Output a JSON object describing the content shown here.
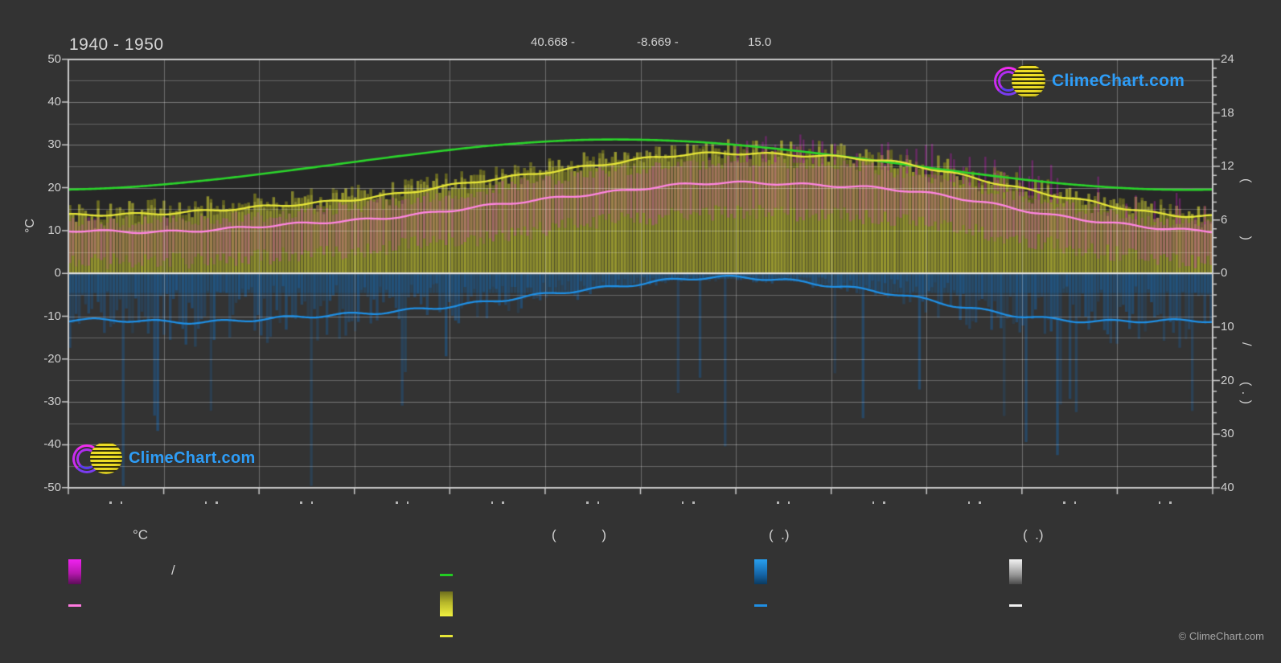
{
  "header": {
    "title": "1940 - 1950",
    "coordinates": [
      "40.668 -",
      "-8.669 -",
      "15.0"
    ]
  },
  "branding": {
    "logo_text": "ClimeChart.com",
    "copyright": "© ClimeChart.com"
  },
  "axes": {
    "left": {
      "label": "°C",
      "ticks": [
        50,
        40,
        30,
        20,
        10,
        0,
        -10,
        -20,
        -30,
        -40,
        -50
      ],
      "range": [
        -50,
        50
      ]
    },
    "right_upper": {
      "ticks": [
        24,
        18,
        12,
        6,
        0
      ],
      "range": [
        0,
        24
      ],
      "rotated_label": "(            )"
    },
    "right_lower": {
      "ticks": [
        10,
        20,
        30,
        40
      ],
      "range": [
        0,
        40
      ],
      "rotated_label": "/        ( . )"
    },
    "bottom": {
      "months": 12,
      "month_label_glyphs": ". ."
    }
  },
  "chart_data": {
    "type": "area",
    "subtype": "climate-composite",
    "title": "1940 - 1950",
    "x_months_count": 12,
    "x_labels_visible": [
      ". .",
      ". .",
      ". .",
      ". .",
      ". .",
      ". .",
      ". .",
      ". .",
      ". .",
      ". .",
      ". .",
      ". ."
    ],
    "ylim_left_celsius": [
      -50,
      50
    ],
    "ylim_right_sun_hours": [
      0,
      24
    ],
    "ylim_right_precip_mm": [
      0,
      40
    ],
    "grid": true,
    "series": [
      {
        "name": "day-length-hours",
        "style": "line",
        "axis": "right_upper",
        "monthly": [
          9.6,
          10.5,
          11.8,
          13.2,
          14.4,
          15.0,
          14.8,
          13.9,
          12.6,
          11.2,
          10.0,
          9.4
        ]
      },
      {
        "name": "daily-max-temp-avg-c",
        "style": "line",
        "axis": "left",
        "monthly": [
          13.9,
          14.6,
          16.3,
          18.8,
          22.0,
          25.3,
          27.6,
          27.9,
          26.3,
          22.3,
          17.6,
          13.7
        ]
      },
      {
        "name": "daily-mean-temp-avg-c",
        "style": "line",
        "axis": "left",
        "monthly": [
          9.8,
          10.2,
          11.6,
          13.5,
          15.9,
          18.7,
          20.7,
          21.0,
          19.9,
          16.9,
          13.1,
          10.3
        ]
      },
      {
        "name": "precipitation-avg-mm",
        "style": "line",
        "axis": "right_lower",
        "monthly": [
          8.8,
          8.9,
          8.2,
          6.8,
          5.2,
          2.8,
          1.0,
          1.3,
          3.3,
          6.8,
          8.6,
          9.0
        ]
      },
      {
        "name": "daily-max-temp-bars",
        "style": "bars",
        "axis": "left"
      },
      {
        "name": "daily-temp-range-bars",
        "style": "bars",
        "axis": "left"
      },
      {
        "name": "daily-precipitation-bars",
        "style": "bars",
        "axis": "right_lower"
      }
    ],
    "colors": {
      "background": "#333333",
      "grid": "#ffffff",
      "axis": "#c9c9c9",
      "zero_line": "#e0e0e0",
      "bar_olive": "#a2a230",
      "bar_magenta": "#c03fad",
      "bar_blue": "#1c5c96",
      "line_green": "#2bd52b",
      "line_yellow": "#e6e638",
      "line_pink": "#ff86e2",
      "line_blue": "#1f8fe4"
    }
  },
  "legend": {
    "columns": [
      {
        "header": "°C",
        "items": [
          {
            "swatch": "gradient-magenta",
            "label": "/"
          },
          {
            "swatch": "line-magenta",
            "label": ""
          }
        ]
      },
      {
        "header": "(            )",
        "items": [
          {
            "swatch": "line-green",
            "label": ""
          },
          {
            "swatch": "gradient-yellow",
            "label": ""
          },
          {
            "swatch": "line-yellow",
            "label": ""
          }
        ]
      },
      {
        "header": "(  .)",
        "items": [
          {
            "swatch": "gradient-blue",
            "label": ""
          },
          {
            "swatch": "line-blue",
            "label": ""
          }
        ]
      },
      {
        "header": "(  .)",
        "items": [
          {
            "swatch": "gradient-white",
            "label": ""
          },
          {
            "swatch": "line-white",
            "label": ""
          }
        ]
      }
    ]
  }
}
